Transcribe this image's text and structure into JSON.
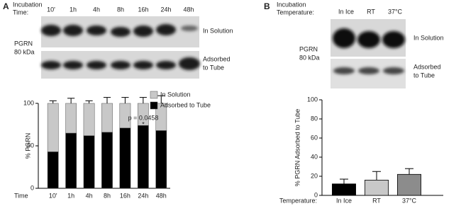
{
  "panels": [
    {
      "label": "A",
      "condition_label": [
        "Incubation",
        "Time:"
      ],
      "lanes": [
        "10'",
        "1h",
        "4h",
        "8h",
        "16h",
        "24h",
        "48h"
      ],
      "blot_labels": [
        "In Solution",
        [
          "Adsorbed",
          "to Tube"
        ]
      ],
      "protein": [
        "PGRN",
        "80 kDa"
      ]
    },
    {
      "label": "B",
      "condition_label": [
        "Incubation",
        "Temperature:"
      ],
      "lanes": [
        "In Ice",
        "RT",
        "37°C"
      ],
      "blot_labels": [
        "In Solution",
        [
          "Adsorbed",
          "to Tube"
        ]
      ],
      "protein": [
        "PGRN",
        "80 kDa"
      ]
    }
  ],
  "chart_data": [
    {
      "type": "bar",
      "stacked": true,
      "ylabel": "% PGRN",
      "xlabel": "Time",
      "categories": [
        "10'",
        "1h",
        "4h",
        "8h",
        "16h",
        "24h",
        "48h"
      ],
      "series": [
        {
          "name": "Adsorbed to Tube",
          "color": "#000000",
          "values": [
            43,
            65,
            62,
            66,
            71,
            74,
            68
          ],
          "errors": [
            3,
            4,
            3,
            4,
            4,
            6,
            6
          ]
        },
        {
          "name": "In Solution",
          "color": "#c8c8c8",
          "values": [
            57,
            35,
            38,
            34,
            29,
            26,
            32
          ],
          "errors": [
            3,
            6,
            3,
            7,
            7,
            7,
            9
          ]
        }
      ],
      "legend_order": [
        1,
        0
      ],
      "annotations": [
        "p = 0.0458",
        "*"
      ],
      "ylim": [
        0,
        100
      ],
      "yticks": [
        0,
        50,
        100
      ]
    },
    {
      "type": "bar",
      "stacked": false,
      "ylabel": "% PGRN Adsorbed to Tube",
      "xlabel": "Temperature:",
      "categories": [
        "In Ice",
        "RT",
        "37°C"
      ],
      "values": [
        12,
        16,
        22
      ],
      "errors": [
        5,
        9,
        6
      ],
      "colors": [
        "#000000",
        "#c8c8c8",
        "#8c8c8c"
      ],
      "ylim": [
        0,
        100
      ],
      "yticks": [
        0,
        20,
        40,
        60,
        80,
        100
      ]
    }
  ]
}
